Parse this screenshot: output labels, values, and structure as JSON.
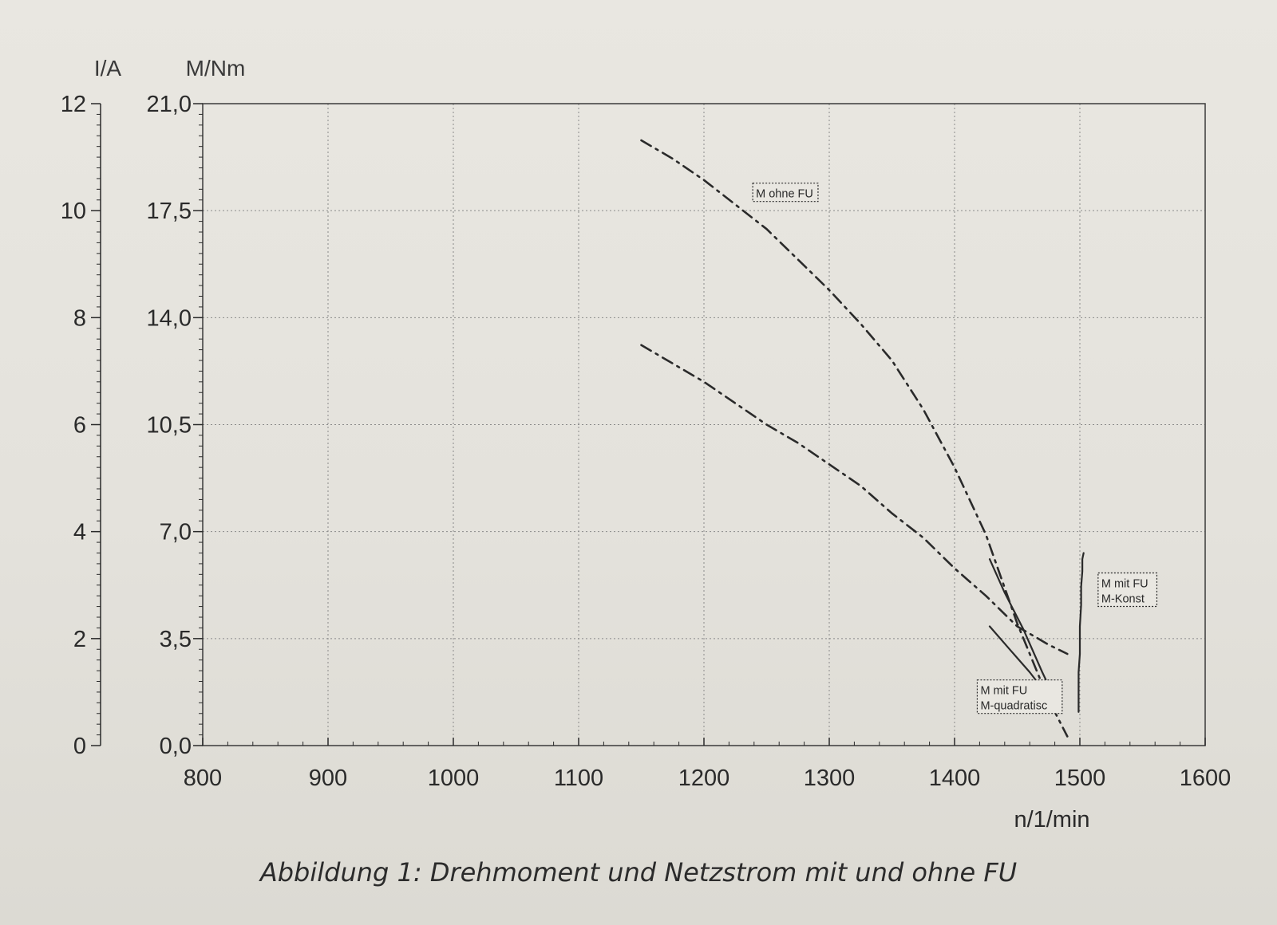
{
  "caption": "Abbildung 1: Drehmoment und Netzstrom mit und ohne FU",
  "chart_data": {
    "type": "line",
    "xlabel": "n/1/min",
    "ylabel": "M/Nm",
    "ylabel_secondary": "I/A",
    "xlim": [
      800,
      1600
    ],
    "ylim": [
      0,
      21
    ],
    "ylim_secondary": [
      0,
      12
    ],
    "x_ticks": [
      "800",
      "900",
      "1000",
      "1100",
      "1200",
      "1300",
      "1400",
      "1500",
      "1600"
    ],
    "y_ticks": [
      "0,0",
      "3,5",
      "7,0",
      "10,5",
      "14,0",
      "17,5",
      "21,0"
    ],
    "y_ticks_secondary": [
      "0",
      "2",
      "4",
      "6",
      "8",
      "10",
      "12"
    ],
    "grid": true,
    "ink_color": "#2a2a2a",
    "series": [
      {
        "name": "M ohne FU",
        "style": "dash-dot",
        "x": [
          1150,
          1175,
          1200,
          1225,
          1250,
          1275,
          1300,
          1325,
          1350,
          1375,
          1400,
          1425,
          1450,
          1475,
          1490
        ],
        "y": [
          19.8,
          19.2,
          18.5,
          17.7,
          16.9,
          15.9,
          14.9,
          13.8,
          12.6,
          11.0,
          9.1,
          6.9,
          4.0,
          1.5,
          0.3
        ]
      },
      {
        "name": "",
        "style": "dash-dot",
        "x": [
          1150,
          1175,
          1200,
          1225,
          1250,
          1275,
          1300,
          1325,
          1350,
          1375,
          1400,
          1425,
          1450,
          1475,
          1490
        ],
        "y": [
          13.1,
          12.5,
          11.9,
          11.2,
          10.5,
          9.9,
          9.2,
          8.5,
          7.6,
          6.8,
          5.8,
          4.9,
          3.9,
          3.3,
          3.0
        ]
      },
      {
        "name": "M mit FU M-quadratisc",
        "style": "solid",
        "x": [
          1428,
          1440,
          1455,
          1470,
          1485
        ],
        "y": [
          6.1,
          5.0,
          3.8,
          2.4,
          1.1
        ]
      },
      {
        "name": "",
        "style": "solid",
        "x": [
          1428,
          1445,
          1460,
          1475,
          1485
        ],
        "y": [
          3.9,
          3.1,
          2.4,
          1.6,
          1.1
        ]
      },
      {
        "name": "M mit FU M-Konst",
        "style": "solid",
        "x": [
          1499,
          1499,
          1500,
          1500,
          1501,
          1501,
          1502,
          1502,
          1503
        ],
        "y": [
          1.1,
          2.4,
          3.0,
          3.9,
          4.6,
          5.2,
          5.7,
          6.1,
          6.3
        ]
      }
    ],
    "annotations": [
      {
        "lines": [
          "M ohne FU"
        ],
        "x": 1265,
        "y": 18.1
      },
      {
        "lines": [
          "M mit FU",
          "M-Konst"
        ],
        "x": 1538,
        "y": 5.1
      },
      {
        "lines": [
          "M mit FU",
          "M-quadratisc"
        ],
        "x": 1452,
        "y": 1.6
      }
    ]
  }
}
